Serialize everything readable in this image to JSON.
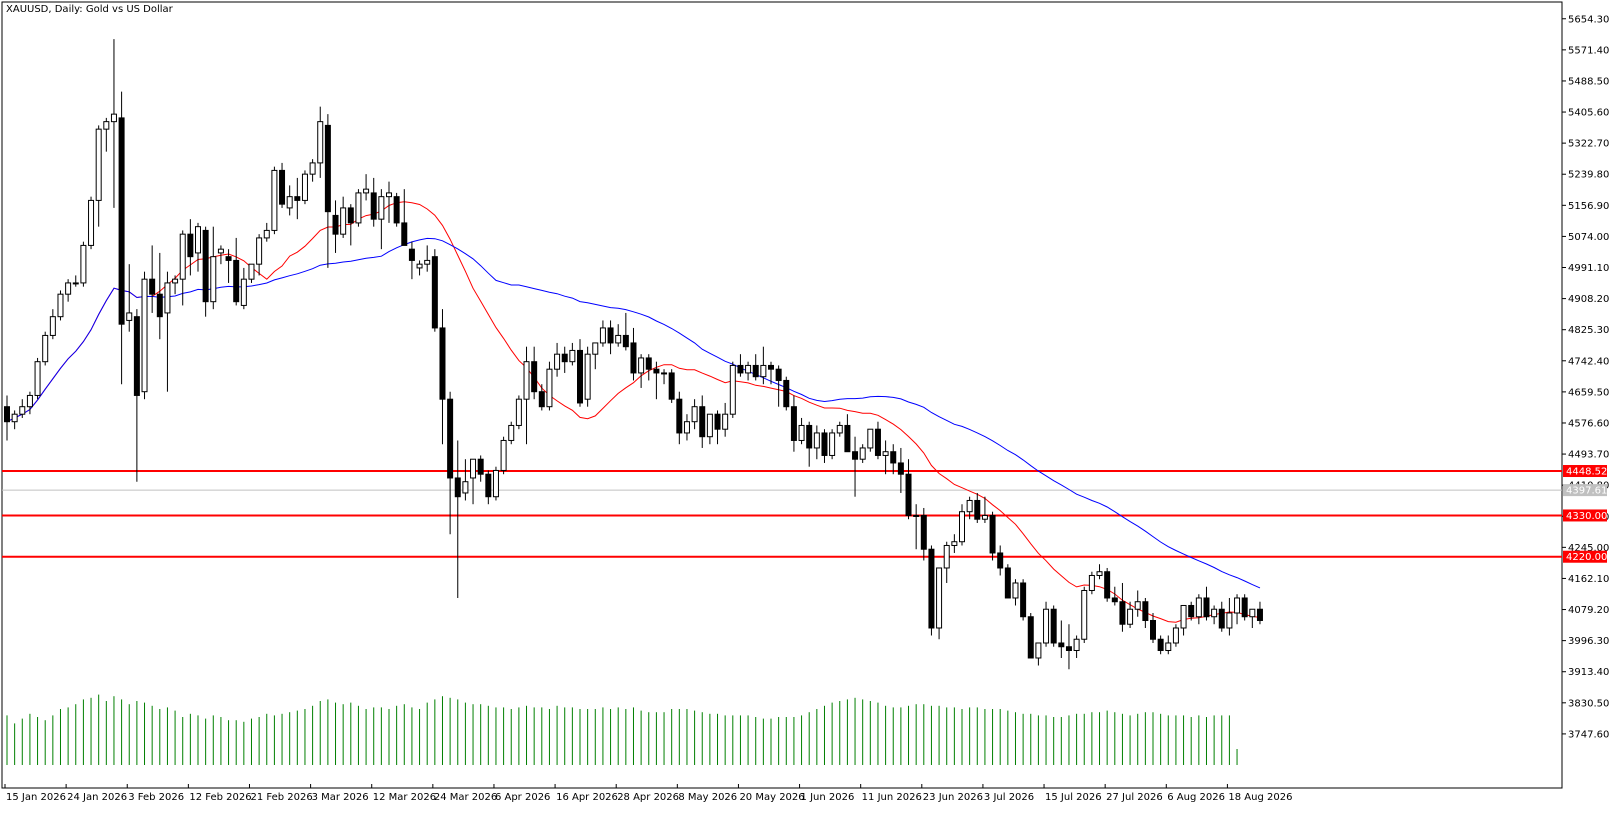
{
  "chart_data": {
    "type": "candlestick",
    "title": "XAUUSD, Daily:  Gold vs US Dollar",
    "symbol": "XAUUSD",
    "timeframe": "Daily",
    "description": "Gold vs US Dollar",
    "ylim": [
      3664.7,
      5683.0
    ],
    "y_ticks": [
      "5654.30",
      "5571.40",
      "5488.50",
      "5405.60",
      "5322.70",
      "5239.80",
      "5156.90",
      "5074.00",
      "4991.10",
      "4908.20",
      "4825.30",
      "4742.40",
      "4659.50",
      "4576.60",
      "4493.70",
      "4410.80",
      "4327.90",
      "4245.00",
      "4162.10",
      "4079.20",
      "3996.30",
      "3913.40",
      "3830.50",
      "3747.60"
    ],
    "x_labels": [
      "15 Jan 2026",
      "24 Jan 2026",
      "3 Feb 2026",
      "12 Feb 2026",
      "21 Feb 2026",
      "3 Mar 2026",
      "12 Mar 2026",
      "24 Mar 2026",
      "6 Apr 2026",
      "16 Apr 2026",
      "28 Apr 2026",
      "8 May 2026",
      "20 May 2026",
      "1 Jun 2026",
      "11 Jun 2026",
      "23 Jun 2026",
      "3 Jul 2026",
      "15 Jul 2026",
      "27 Jul 2026",
      "6 Aug 2026",
      "18 Aug 2026"
    ],
    "x_label_index": [
      0,
      8,
      16,
      24,
      32,
      40,
      48,
      56,
      64,
      72,
      80,
      88,
      96,
      104,
      112,
      120,
      128,
      136,
      144,
      152,
      160
    ],
    "current_price": "4397.61",
    "horizontal_levels": [
      {
        "value": 4448.52,
        "label": "4448.52",
        "color": "#ff0000"
      },
      {
        "value": 4330.0,
        "label": "4330.00",
        "color": "#ff0000"
      },
      {
        "value": 4220.0,
        "label": "4220.00",
        "color": "#ff0000"
      }
    ],
    "colors": {
      "bull": "#ffffff",
      "bear": "#000000",
      "wick": "#000000",
      "ma_fast": "#ff0000",
      "ma_slow": "#0000ff",
      "volume": "#008000",
      "price_line": "#c0c0c0",
      "axis": "#000000"
    },
    "ohlc": [
      [
        4620,
        4650,
        4530,
        4580
      ],
      [
        4580,
        4610,
        4560,
        4600
      ],
      [
        4600,
        4640,
        4590,
        4620
      ],
      [
        4620,
        4660,
        4600,
        4650
      ],
      [
        4650,
        4750,
        4640,
        4740
      ],
      [
        4740,
        4820,
        4730,
        4810
      ],
      [
        4810,
        4880,
        4800,
        4860
      ],
      [
        4860,
        4930,
        4850,
        4920
      ],
      [
        4920,
        4960,
        4900,
        4950
      ],
      [
        4950,
        4970,
        4940,
        4950
      ],
      [
        4950,
        5060,
        4940,
        5050
      ],
      [
        5050,
        5180,
        5040,
        5170
      ],
      [
        5170,
        5370,
        5100,
        5360
      ],
      [
        5360,
        5390,
        5300,
        5380
      ],
      [
        5380,
        5600,
        5150,
        5400
      ],
      [
        5390,
        5460,
        4680,
        4840
      ],
      [
        4850,
        5000,
        4820,
        4870
      ],
      [
        4860,
        4880,
        4420,
        4650
      ],
      [
        4660,
        4980,
        4640,
        4960
      ],
      [
        4960,
        5050,
        4870,
        4920
      ],
      [
        4920,
        5030,
        4800,
        4860
      ],
      [
        4870,
        4980,
        4660,
        4950
      ],
      [
        4950,
        4970,
        4920,
        4960
      ],
      [
        4960,
        5090,
        4890,
        5080
      ],
      [
        5080,
        5120,
        4970,
        5020
      ],
      [
        5030,
        5110,
        4980,
        5100
      ],
      [
        5090,
        5100,
        4860,
        4900
      ],
      [
        4900,
        5100,
        4880,
        5020
      ],
      [
        5030,
        5050,
        5000,
        5040
      ],
      [
        5020,
        5040,
        4950,
        5010
      ],
      [
        5010,
        5070,
        4890,
        4900
      ],
      [
        4890,
        4990,
        4880,
        4960
      ],
      [
        4960,
        5000,
        4950,
        5000
      ],
      [
        5000,
        5080,
        4970,
        5070
      ],
      [
        5070,
        5110,
        5060,
        5090
      ],
      [
        5090,
        5260,
        5080,
        5250
      ],
      [
        5250,
        5270,
        5150,
        5160
      ],
      [
        5150,
        5210,
        5130,
        5180
      ],
      [
        5180,
        5230,
        5120,
        5170
      ],
      [
        5170,
        5250,
        5160,
        5240
      ],
      [
        5240,
        5280,
        5220,
        5270
      ],
      [
        5270,
        5420,
        5230,
        5380
      ],
      [
        5370,
        5400,
        4990,
        5140
      ],
      [
        5130,
        5170,
        5030,
        5080
      ],
      [
        5080,
        5180,
        5070,
        5150
      ],
      [
        5150,
        5160,
        5050,
        5110
      ],
      [
        5110,
        5200,
        5100,
        5190
      ],
      [
        5190,
        5240,
        5170,
        5200
      ],
      [
        5190,
        5230,
        5100,
        5120
      ],
      [
        5120,
        5200,
        5040,
        5180
      ],
      [
        5180,
        5220,
        5110,
        5190
      ],
      [
        5180,
        5190,
        5100,
        5110
      ],
      [
        5110,
        5200,
        5050,
        5050
      ],
      [
        5040,
        5060,
        4960,
        5010
      ],
      [
        4990,
        5010,
        4970,
        5000
      ],
      [
        5000,
        5050,
        4980,
        5010
      ],
      [
        5020,
        5040,
        4820,
        4830
      ],
      [
        4830,
        4880,
        4520,
        4640
      ],
      [
        4640,
        4660,
        4280,
        4430
      ],
      [
        4430,
        4530,
        4110,
        4380
      ],
      [
        4390,
        4480,
        4370,
        4420
      ],
      [
        4430,
        4480,
        4360,
        4480
      ],
      [
        4480,
        4490,
        4420,
        4440
      ],
      [
        4440,
        4450,
        4360,
        4380
      ],
      [
        4380,
        4460,
        4370,
        4450
      ],
      [
        4450,
        4540,
        4440,
        4530
      ],
      [
        4530,
        4580,
        4520,
        4570
      ],
      [
        4570,
        4650,
        4560,
        4640
      ],
      [
        4640,
        4780,
        4520,
        4740
      ],
      [
        4740,
        4780,
        4640,
        4660
      ],
      [
        4660,
        4680,
        4610,
        4620
      ],
      [
        4620,
        4740,
        4610,
        4720
      ],
      [
        4720,
        4790,
        4700,
        4760
      ],
      [
        4760,
        4780,
        4710,
        4740
      ],
      [
        4740,
        4790,
        4730,
        4770
      ],
      [
        4770,
        4800,
        4620,
        4630
      ],
      [
        4640,
        4780,
        4620,
        4760
      ],
      [
        4760,
        4790,
        4720,
        4790
      ],
      [
        4790,
        4850,
        4780,
        4830
      ],
      [
        4830,
        4850,
        4760,
        4790
      ],
      [
        4790,
        4840,
        4780,
        4810
      ],
      [
        4810,
        4870,
        4770,
        4780
      ],
      [
        4790,
        4830,
        4690,
        4710
      ],
      [
        4710,
        4760,
        4670,
        4750
      ],
      [
        4750,
        4760,
        4690,
        4720
      ],
      [
        4720,
        4740,
        4640,
        4710
      ],
      [
        4710,
        4720,
        4680,
        4710
      ],
      [
        4710,
        4720,
        4630,
        4640
      ],
      [
        4640,
        4660,
        4520,
        4550
      ],
      [
        4550,
        4600,
        4530,
        4580
      ],
      [
        4580,
        4640,
        4560,
        4620
      ],
      [
        4620,
        4650,
        4510,
        4540
      ],
      [
        4540,
        4600,
        4520,
        4600
      ],
      [
        4600,
        4610,
        4520,
        4560
      ],
      [
        4560,
        4630,
        4540,
        4600
      ],
      [
        4600,
        4740,
        4590,
        4730
      ],
      [
        4730,
        4760,
        4700,
        4710
      ],
      [
        4710,
        4740,
        4690,
        4730
      ],
      [
        4730,
        4760,
        4690,
        4700
      ],
      [
        4700,
        4780,
        4680,
        4730
      ],
      [
        4730,
        4740,
        4680,
        4720
      ],
      [
        4720,
        4730,
        4620,
        4690
      ],
      [
        4690,
        4700,
        4610,
        4620
      ],
      [
        4620,
        4650,
        4500,
        4530
      ],
      [
        4530,
        4590,
        4520,
        4570
      ],
      [
        4570,
        4580,
        4460,
        4510
      ],
      [
        4510,
        4570,
        4480,
        4550
      ],
      [
        4550,
        4560,
        4470,
        4490
      ],
      [
        4490,
        4560,
        4480,
        4550
      ],
      [
        4550,
        4580,
        4540,
        4570
      ],
      [
        4570,
        4600,
        4500,
        4500
      ],
      [
        4500,
        4540,
        4380,
        4480
      ],
      [
        4480,
        4520,
        4470,
        4510
      ],
      [
        4510,
        4560,
        4500,
        4560
      ],
      [
        4560,
        4580,
        4480,
        4490
      ],
      [
        4490,
        4530,
        4440,
        4500
      ],
      [
        4500,
        4520,
        4440,
        4470
      ],
      [
        4470,
        4510,
        4390,
        4440
      ],
      [
        4440,
        4480,
        4320,
        4330
      ],
      [
        4330,
        4360,
        4240,
        4330
      ],
      [
        4330,
        4350,
        4210,
        4240
      ],
      [
        4240,
        4250,
        4010,
        4030
      ],
      [
        4030,
        4190,
        4000,
        4190
      ],
      [
        4190,
        4260,
        4150,
        4250
      ],
      [
        4250,
        4280,
        4230,
        4260
      ],
      [
        4260,
        4360,
        4250,
        4340
      ],
      [
        4340,
        4380,
        4320,
        4370
      ],
      [
        4370,
        4390,
        4310,
        4320
      ],
      [
        4320,
        4380,
        4310,
        4330
      ],
      [
        4330,
        4340,
        4210,
        4230
      ],
      [
        4230,
        4250,
        4170,
        4190
      ],
      [
        4190,
        4200,
        4110,
        4110
      ],
      [
        4110,
        4160,
        4090,
        4150
      ],
      [
        4150,
        4160,
        4050,
        4060
      ],
      [
        4060,
        4070,
        3950,
        3950
      ],
      [
        3950,
        3990,
        3930,
        3990
      ],
      [
        3990,
        4100,
        3980,
        4080
      ],
      [
        4080,
        4090,
        3980,
        3990
      ],
      [
        3990,
        4050,
        3950,
        3980
      ],
      [
        3980,
        4040,
        3920,
        3970
      ],
      [
        3970,
        4010,
        3950,
        4000
      ],
      [
        4000,
        4140,
        3990,
        4130
      ],
      [
        4130,
        4180,
        4120,
        4170
      ],
      [
        4170,
        4200,
        4160,
        4180
      ],
      [
        4180,
        4190,
        4100,
        4110
      ],
      [
        4110,
        4140,
        4090,
        4100
      ],
      [
        4100,
        4150,
        4020,
        4040
      ],
      [
        4040,
        4100,
        4030,
        4080
      ],
      [
        4080,
        4130,
        4060,
        4100
      ],
      [
        4100,
        4110,
        4030,
        4050
      ],
      [
        4050,
        4070,
        3990,
        4000
      ],
      [
        4000,
        4010,
        3960,
        3970
      ],
      [
        3970,
        4010,
        3960,
        3990
      ],
      [
        3990,
        4040,
        3980,
        4030
      ],
      [
        4030,
        4090,
        4010,
        4090
      ],
      [
        4090,
        4100,
        4050,
        4060
      ],
      [
        4060,
        4120,
        4040,
        4110
      ],
      [
        4110,
        4140,
        4050,
        4060
      ],
      [
        4060,
        4090,
        4040,
        4080
      ],
      [
        4080,
        4100,
        4020,
        4030
      ],
      [
        4030,
        4110,
        4010,
        4070
      ],
      [
        4070,
        4120,
        4040,
        4110
      ],
      [
        4110,
        4120,
        4050,
        4060
      ],
      [
        4060,
        4080,
        4030,
        4080
      ],
      [
        4080,
        4100,
        4040,
        4050
      ]
    ],
    "volume_levels": [
      0.62,
      0.52,
      0.58,
      0.64,
      0.6,
      0.56,
      0.62,
      0.7,
      0.72,
      0.76,
      0.82,
      0.84,
      0.88,
      0.8,
      0.86,
      0.82,
      0.76,
      0.8,
      0.78,
      0.74,
      0.7,
      0.72,
      0.68,
      0.6,
      0.64,
      0.62,
      0.58,
      0.62,
      0.6,
      0.56,
      0.56,
      0.54,
      0.58,
      0.6,
      0.64,
      0.62,
      0.64,
      0.66,
      0.68,
      0.7,
      0.74,
      0.8,
      0.82,
      0.78,
      0.76,
      0.78,
      0.74,
      0.7,
      0.72,
      0.72,
      0.7,
      0.74,
      0.76,
      0.72,
      0.7,
      0.78,
      0.82,
      0.86,
      0.84,
      0.82,
      0.78,
      0.76,
      0.76,
      0.74,
      0.72,
      0.72,
      0.7,
      0.72,
      0.74,
      0.72,
      0.72,
      0.7,
      0.74,
      0.72,
      0.72,
      0.7,
      0.7,
      0.7,
      0.72,
      0.7,
      0.72,
      0.7,
      0.72,
      0.68,
      0.66,
      0.66,
      0.66,
      0.7,
      0.7,
      0.7,
      0.68,
      0.66,
      0.64,
      0.64,
      0.62,
      0.62,
      0.62,
      0.62,
      0.6,
      0.58,
      0.58,
      0.6,
      0.6,
      0.6,
      0.62,
      0.66,
      0.7,
      0.74,
      0.78,
      0.8,
      0.82,
      0.84,
      0.82,
      0.8,
      0.78,
      0.74,
      0.72,
      0.72,
      0.74,
      0.76,
      0.76,
      0.74,
      0.74,
      0.72,
      0.72,
      0.7,
      0.72,
      0.72,
      0.7,
      0.7,
      0.7,
      0.68,
      0.66,
      0.64,
      0.64,
      0.62,
      0.62,
      0.6,
      0.6,
      0.62,
      0.64,
      0.64,
      0.66,
      0.66,
      0.68,
      0.66,
      0.64,
      0.62,
      0.64,
      0.66,
      0.66,
      0.64,
      0.62,
      0.62,
      0.62,
      0.6,
      0.62,
      0.6,
      0.62,
      0.62,
      0.62,
      0.2
    ]
  }
}
